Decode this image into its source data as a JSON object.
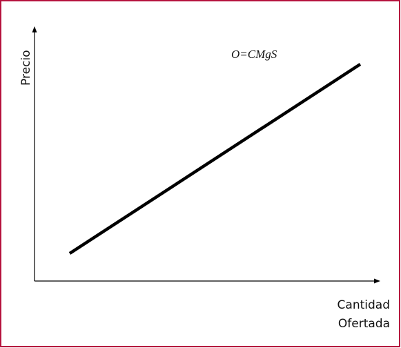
{
  "y_axis": {
    "label": "Precio"
  },
  "x_axis": {
    "label_lines": [
      "Cantidad",
      "Ofertada"
    ]
  },
  "curve": {
    "label": "O=CMgS"
  }
}
